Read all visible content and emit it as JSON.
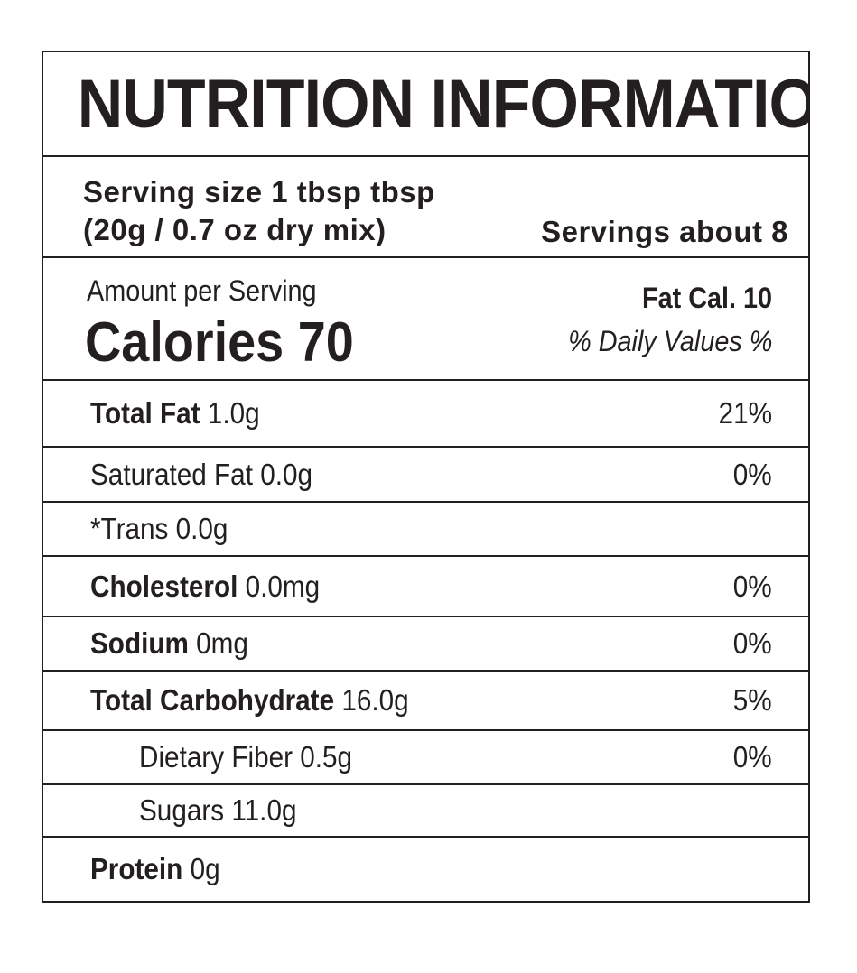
{
  "title": "NUTRITION INFORMATION",
  "serving": {
    "size_line1": "Serving size 1 tbsp tbsp",
    "size_line2": "(20g / 0.7 oz dry mix)",
    "servings": "Servings about 8"
  },
  "amount": {
    "per_serving": "Amount per Serving",
    "calories": "Calories 70",
    "fat_cal": "Fat Cal. 10",
    "daily_values": "% Daily Values %"
  },
  "nutrients": [
    {
      "label": "Total Fat",
      "amount": "1.0g",
      "dv": "21%"
    },
    {
      "label": "",
      "amount": "Saturated Fat 0.0g",
      "dv": "0%"
    },
    {
      "label": "",
      "amount": "*Trans 0.0g",
      "dv": ""
    },
    {
      "label": "Cholesterol",
      "amount": "0.0mg",
      "dv": "0%"
    },
    {
      "label": "Sodium",
      "amount": "0mg",
      "dv": "0%"
    },
    {
      "label": "Total Carbohydrate",
      "amount": "16.0g",
      "dv": "5%"
    },
    {
      "label": "",
      "amount": "Dietary Fiber 0.5g",
      "dv": "0%"
    },
    {
      "label": "",
      "amount": "Sugars 11.0g",
      "dv": ""
    },
    {
      "label": "Protein",
      "amount": "0g",
      "dv": ""
    }
  ]
}
